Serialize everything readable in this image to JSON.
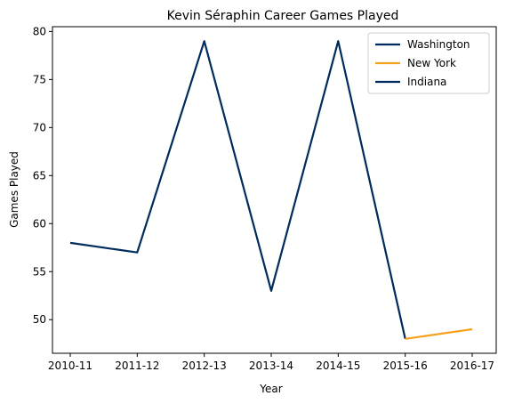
{
  "chart_data": {
    "type": "line",
    "title": "Kevin Séraphin Career Games Played",
    "xlabel": "Year",
    "ylabel": "Games Played",
    "categories": [
      "2010-11",
      "2011-12",
      "2012-13",
      "2013-14",
      "2014-15",
      "2015-16",
      "2016-17"
    ],
    "ylim": [
      46.5,
      80.5
    ],
    "yticks": [
      50,
      55,
      60,
      65,
      70,
      75,
      80
    ],
    "grid": false,
    "legend_position": "top-right",
    "series": [
      {
        "name": "Washington",
        "color": "#002b5c",
        "points": [
          [
            0,
            58
          ],
          [
            1,
            57
          ],
          [
            2,
            79
          ],
          [
            3,
            53
          ],
          [
            4,
            79
          ],
          [
            5,
            48
          ]
        ]
      },
      {
        "name": "New York",
        "color": "#f5a11c",
        "points": [
          [
            5,
            48
          ],
          [
            6,
            49
          ]
        ]
      },
      {
        "name": "Indiana",
        "color": "#002b5c",
        "points": []
      }
    ]
  }
}
